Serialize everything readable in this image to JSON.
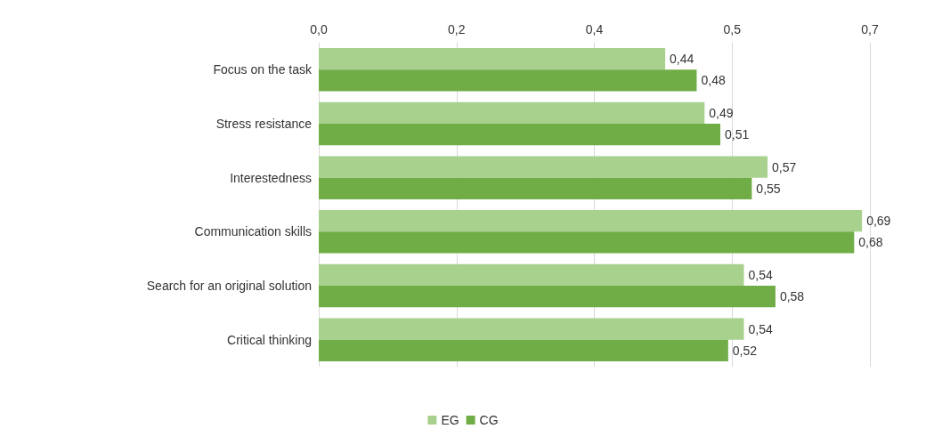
{
  "chart_data": {
    "type": "bar",
    "orientation": "horizontal",
    "categories": [
      "Focus on the task",
      "Stress resistance",
      "Interestedness",
      "Communication skills",
      "Search for an original solution",
      "Critical thinking"
    ],
    "series": [
      {
        "name": "EG",
        "color": "#a9d18e",
        "values": [
          0.44,
          0.49,
          0.57,
          0.69,
          0.54,
          0.54
        ],
        "value_labels": [
          "0,44",
          "0,49",
          "0,57",
          "0,69",
          "0,54",
          "0,54"
        ]
      },
      {
        "name": "CG",
        "color": "#70ad47",
        "values": [
          0.48,
          0.51,
          0.55,
          0.68,
          0.58,
          0.52
        ],
        "value_labels": [
          "0,48",
          "0,51",
          "0,55",
          "0,68",
          "0,58",
          "0,52"
        ]
      }
    ],
    "xlim": [
      0,
      0.7
    ],
    "xticks": [
      {
        "value": 0,
        "label": "0,0"
      },
      {
        "value": 0.175,
        "label": "0,2"
      },
      {
        "value": 0.35,
        "label": "0,4"
      },
      {
        "value": 0.525,
        "label": "0,5"
      },
      {
        "value": 0.7,
        "label": "0,7"
      }
    ],
    "grid": "x",
    "legend": "bottom"
  }
}
